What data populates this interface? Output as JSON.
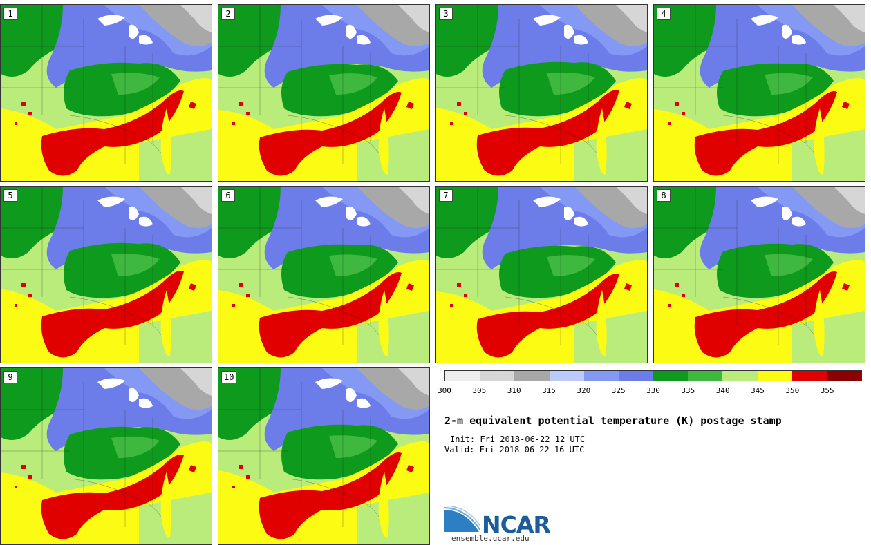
{
  "panels": [
    "1",
    "2",
    "3",
    "4",
    "5",
    "6",
    "7",
    "8",
    "9",
    "10"
  ],
  "colorbar": {
    "ticks": [
      "300",
      "305",
      "310",
      "315",
      "320",
      "325",
      "330",
      "335",
      "340",
      "345",
      "350",
      "355"
    ],
    "colors": [
      "#eeeeee",
      "#d6d6d6",
      "#a8a8a8",
      "#bccbfb",
      "#8399f4",
      "#6c7de9",
      "#0e9a1c",
      "#3fb83f",
      "#b9ec7a",
      "#fcfb14",
      "#e00000",
      "#8b0000"
    ]
  },
  "title": "2-m equivalent potential temperature (K) postage stamp",
  "init": "Init: Fri 2018-06-22 12 UTC",
  "valid": "Valid: Fri 2018-06-22 16 UTC",
  "logo": {
    "name": "NCAR",
    "site": "ensemble.ucar.edu"
  }
}
